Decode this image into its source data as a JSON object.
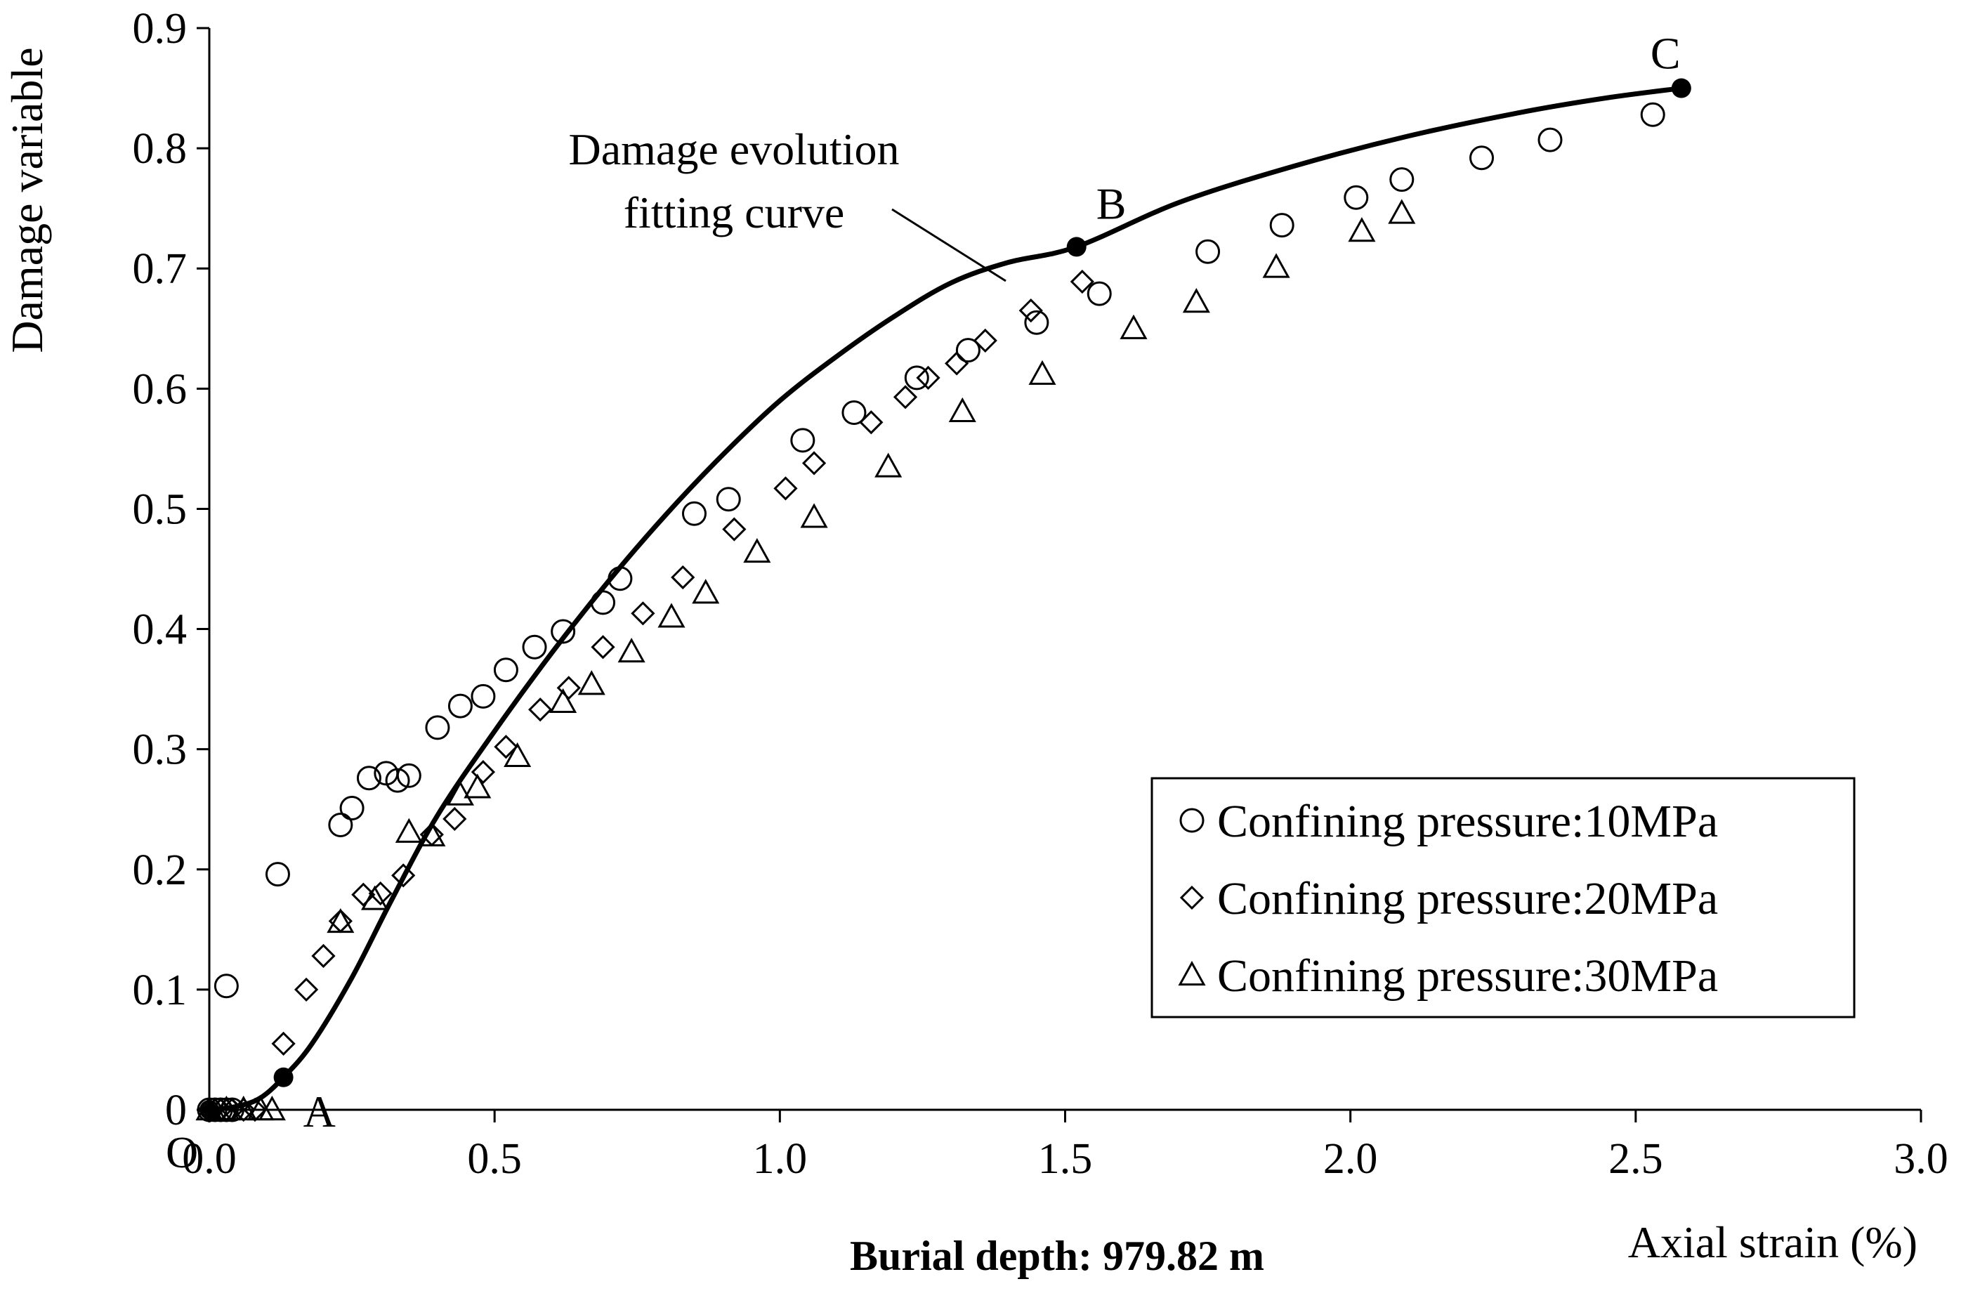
{
  "chart_data": {
    "type": "scatter",
    "title": "",
    "caption": "Burial depth: 979.82 m",
    "xlabel": "Axial strain (%)",
    "ylabel": "Damage variable",
    "xlim": [
      0,
      3.0
    ],
    "ylim": [
      0,
      0.9
    ],
    "x_ticks": [
      "0.0",
      "0.5",
      "1.0",
      "1.5",
      "2.0",
      "2.5",
      "3.0"
    ],
    "y_ticks": [
      "0",
      "0.1",
      "0.2",
      "0.3",
      "0.4",
      "0.5",
      "0.6",
      "0.7",
      "0.8",
      "0.9"
    ],
    "grid": false,
    "legend_position": "bottom-right",
    "origin_label": "O",
    "fit_curve": {
      "name": "Damage evolution fitting curve",
      "label_lines": [
        "Damage evolution",
        "fitting curve"
      ],
      "points": [
        [
          0.0,
          0.0
        ],
        [
          0.05,
          0.003
        ],
        [
          0.09,
          0.01
        ],
        [
          0.13,
          0.027
        ],
        [
          0.18,
          0.055
        ],
        [
          0.25,
          0.11
        ],
        [
          0.32,
          0.175
        ],
        [
          0.4,
          0.245
        ],
        [
          0.5,
          0.315
        ],
        [
          0.6,
          0.38
        ],
        [
          0.7,
          0.44
        ],
        [
          0.8,
          0.495
        ],
        [
          0.9,
          0.545
        ],
        [
          1.0,
          0.59
        ],
        [
          1.1,
          0.627
        ],
        [
          1.2,
          0.66
        ],
        [
          1.3,
          0.688
        ],
        [
          1.4,
          0.705
        ],
        [
          1.52,
          0.718
        ],
        [
          1.7,
          0.755
        ],
        [
          1.9,
          0.785
        ],
        [
          2.1,
          0.81
        ],
        [
          2.3,
          0.83
        ],
        [
          2.45,
          0.842
        ],
        [
          2.58,
          0.85
        ]
      ],
      "key_points": [
        {
          "label": "A",
          "x": 0.13,
          "y": 0.027
        },
        {
          "label": "B",
          "x": 1.52,
          "y": 0.718
        },
        {
          "label": "C",
          "x": 2.58,
          "y": 0.85
        }
      ],
      "origin_point": {
        "x": 0.0,
        "y": 0.0
      }
    },
    "series": [
      {
        "name": "Confining pressure:10MPa",
        "legend_label": "Confining pressure:10MPa",
        "marker": "circle",
        "points": [
          [
            0.0,
            0.0
          ],
          [
            0.01,
            0.0
          ],
          [
            0.02,
            0.0
          ],
          [
            0.03,
            0.0
          ],
          [
            0.04,
            0.0
          ],
          [
            0.03,
            0.103
          ],
          [
            0.12,
            0.196
          ],
          [
            0.23,
            0.237
          ],
          [
            0.25,
            0.251
          ],
          [
            0.28,
            0.276
          ],
          [
            0.31,
            0.28
          ],
          [
            0.33,
            0.274
          ],
          [
            0.35,
            0.278
          ],
          [
            0.4,
            0.318
          ],
          [
            0.44,
            0.336
          ],
          [
            0.48,
            0.344
          ],
          [
            0.52,
            0.366
          ],
          [
            0.57,
            0.385
          ],
          [
            0.62,
            0.398
          ],
          [
            0.69,
            0.422
          ],
          [
            0.72,
            0.442
          ],
          [
            0.85,
            0.496
          ],
          [
            0.91,
            0.508
          ],
          [
            1.04,
            0.557
          ],
          [
            1.13,
            0.58
          ],
          [
            1.24,
            0.609
          ],
          [
            1.33,
            0.632
          ],
          [
            1.45,
            0.655
          ],
          [
            1.56,
            0.679
          ],
          [
            1.75,
            0.714
          ],
          [
            1.88,
            0.736
          ],
          [
            2.01,
            0.759
          ],
          [
            2.09,
            0.774
          ],
          [
            2.23,
            0.792
          ],
          [
            2.35,
            0.807
          ],
          [
            2.53,
            0.828
          ]
        ]
      },
      {
        "name": "Confining pressure:20MPa",
        "legend_label": "Confining pressure:20MPa",
        "marker": "diamond",
        "points": [
          [
            0.0,
            0.0
          ],
          [
            0.02,
            0.0
          ],
          [
            0.04,
            0.0
          ],
          [
            0.06,
            0.0
          ],
          [
            0.08,
            0.0
          ],
          [
            0.13,
            0.055
          ],
          [
            0.17,
            0.1
          ],
          [
            0.2,
            0.128
          ],
          [
            0.23,
            0.157
          ],
          [
            0.27,
            0.179
          ],
          [
            0.3,
            0.18
          ],
          [
            0.34,
            0.195
          ],
          [
            0.39,
            0.229
          ],
          [
            0.43,
            0.242
          ],
          [
            0.48,
            0.281
          ],
          [
            0.52,
            0.302
          ],
          [
            0.58,
            0.333
          ],
          [
            0.63,
            0.351
          ],
          [
            0.69,
            0.385
          ],
          [
            0.76,
            0.413
          ],
          [
            0.83,
            0.443
          ],
          [
            0.92,
            0.483
          ],
          [
            1.01,
            0.517
          ],
          [
            1.06,
            0.538
          ],
          [
            1.16,
            0.572
          ],
          [
            1.22,
            0.593
          ],
          [
            1.26,
            0.609
          ],
          [
            1.31,
            0.621
          ],
          [
            1.36,
            0.64
          ],
          [
            1.44,
            0.665
          ],
          [
            1.53,
            0.689
          ]
        ]
      },
      {
        "name": "Confining pressure:30MPa",
        "legend_label": "Confining pressure:30MPa",
        "marker": "triangle",
        "points": [
          [
            0.0,
            0.0
          ],
          [
            0.03,
            0.0
          ],
          [
            0.06,
            0.0
          ],
          [
            0.09,
            0.0
          ],
          [
            0.11,
            0.0
          ],
          [
            0.23,
            0.156
          ],
          [
            0.29,
            0.175
          ],
          [
            0.35,
            0.231
          ],
          [
            0.39,
            0.228
          ],
          [
            0.44,
            0.262
          ],
          [
            0.47,
            0.268
          ],
          [
            0.54,
            0.294
          ],
          [
            0.62,
            0.339
          ],
          [
            0.67,
            0.354
          ],
          [
            0.74,
            0.381
          ],
          [
            0.81,
            0.41
          ],
          [
            0.87,
            0.43
          ],
          [
            0.96,
            0.464
          ],
          [
            1.06,
            0.493
          ],
          [
            1.19,
            0.535
          ],
          [
            1.32,
            0.581
          ],
          [
            1.46,
            0.612
          ],
          [
            1.62,
            0.65
          ],
          [
            1.73,
            0.672
          ],
          [
            1.87,
            0.701
          ],
          [
            2.02,
            0.731
          ],
          [
            2.09,
            0.746
          ]
        ]
      }
    ]
  }
}
